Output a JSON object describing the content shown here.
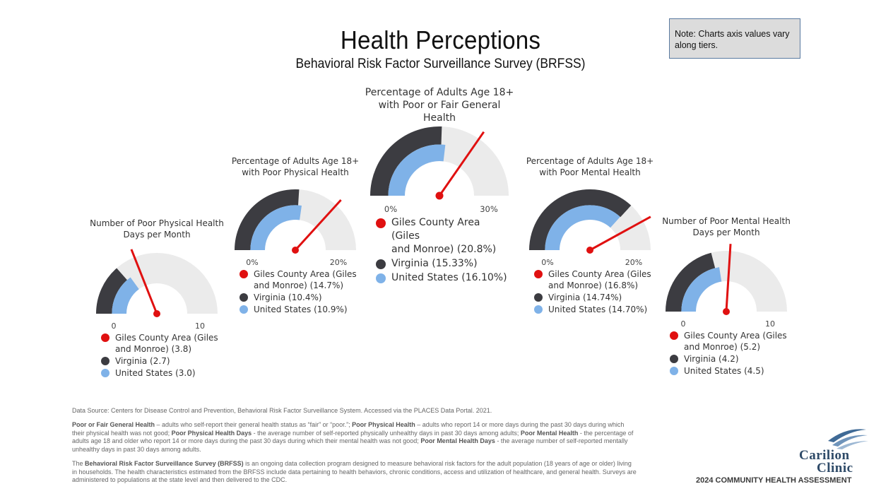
{
  "header": {
    "title": "Health Perceptions",
    "subtitle": "Behavioral Risk Factor Surveillance Survey (BRFSS)",
    "note": "Note:  Charts axis values vary along tiers."
  },
  "colors": {
    "giles": "#e01010",
    "virginia": "#3c3c41",
    "us": "#7fb2e8",
    "track": "#ebebeb"
  },
  "chart_data": [
    {
      "type": "gauge",
      "title_line1": "Number of Poor Physical Health",
      "title_line2": "Days per Month",
      "min": 0,
      "max": 10,
      "min_label": "0",
      "max_label": "10",
      "series": [
        {
          "name": "Giles County Area (Giles and Monroe)",
          "value": 3.8
        },
        {
          "name": "Virginia",
          "value": 2.7
        },
        {
          "name": "United States",
          "value": 3.0
        }
      ],
      "legend": [
        "Giles County Area (Giles",
        "and Monroe) (3.8)",
        "Virginia (2.7)",
        "United States (3.0)"
      ]
    },
    {
      "type": "gauge",
      "title_line1": "Percentage of Adults Age 18+",
      "title_line2": "with Poor Physical Health",
      "min": 0,
      "max": 20,
      "min_label": "0%",
      "max_label": "20%",
      "series": [
        {
          "name": "Giles County Area (Giles and Monroe)",
          "value": 14.7
        },
        {
          "name": "Virginia",
          "value": 10.4
        },
        {
          "name": "United States",
          "value": 10.9
        }
      ],
      "legend": [
        "Giles County Area (Giles",
        "and Monroe) (14.7%)",
        "Virginia (10.4%)",
        "United States (10.9%)"
      ]
    },
    {
      "type": "gauge",
      "title_line1": "Percentage of Adults Age 18+",
      "title_line2": "with Poor or Fair General Health",
      "min": 0,
      "max": 30,
      "min_label": "0%",
      "max_label": "30%",
      "series": [
        {
          "name": "Giles County Area (Giles and Monroe)",
          "value": 20.8
        },
        {
          "name": "Virginia",
          "value": 15.33
        },
        {
          "name": "United States",
          "value": 16.1
        }
      ],
      "legend": [
        "Giles County Area (Giles",
        "and Monroe) (20.8%)",
        "Virginia (15.33%)",
        "United States (16.10%)"
      ]
    },
    {
      "type": "gauge",
      "title_line1": "Percentage of Adults Age 18+",
      "title_line2": "with Poor Mental Health",
      "min": 0,
      "max": 20,
      "min_label": "0%",
      "max_label": "20%",
      "series": [
        {
          "name": "Giles County Area (Giles and Monroe)",
          "value": 16.8
        },
        {
          "name": "Virginia",
          "value": 14.74
        },
        {
          "name": "United States",
          "value": 14.7
        }
      ],
      "legend": [
        "Giles County Area (Giles",
        "and Monroe) (16.8%)",
        "Virginia (14.74%)",
        "United States (14.70%)"
      ]
    },
    {
      "type": "gauge",
      "title_line1": "Number of Poor Mental Health",
      "title_line2": "Days per Month",
      "min": 0,
      "max": 10,
      "min_label": "0",
      "max_label": "10",
      "series": [
        {
          "name": "Giles County Area (Giles and Monroe)",
          "value": 5.2
        },
        {
          "name": "Virginia",
          "value": 4.2
        },
        {
          "name": "United States",
          "value": 4.5
        }
      ],
      "legend": [
        "Giles County Area (Giles",
        "and Monroe) (5.2)",
        "Virginia (4.2)",
        "United States (4.5)"
      ]
    }
  ],
  "footer": {
    "source": "Data Source: Centers for Disease Control and Prevention, Behavioral Risk Factor Surveillance System. Accessed via the PLACES Data Portal. 2021.",
    "def_t1": "Poor or Fair General Health",
    "def_d1": " – adults who self-report their general health status as “fair” or “poor.”; ",
    "def_t2": "Poor Physical Health",
    "def_d2": " – adults who report 14 or more days during the past 30 days during which their physical health was not good; ",
    "def_t3": "Poor Physical Health Days",
    "def_d3": " - the average number of self-reported physically unhealthy days in past 30 days among adults; ",
    "def_t4": "Poor Mental Health",
    "def_d4": " - the percentage of adults age 18 and older who report 14 or more days during the past 30 days during which their mental health was not good; ",
    "def_t5": "Poor Mental Health Days",
    "def_d5": " - the average number of self-reported mentally unhealthy days in past 30 days among adults.",
    "brfss_pre": "The ",
    "brfss_t": "Behavioral Risk Factor Surveillance Survey (BRFSS)",
    "brfss_d": " is an ongoing data collection program designed to measure behavioral risk factors for the adult population (18 years of age or older) living in households. The health characteristics estimated from the BRFSS include data pertaining to health behaviors, chronic conditions, access and utilization of healthcare, and general health. Surveys are administered to populations at the state level and then delivered to the CDC."
  },
  "branding": {
    "logo_line1": "Carilion",
    "logo_line2": "Clinic",
    "assessment": "2024 COMMUNITY HEALTH ASSESSMENT"
  }
}
